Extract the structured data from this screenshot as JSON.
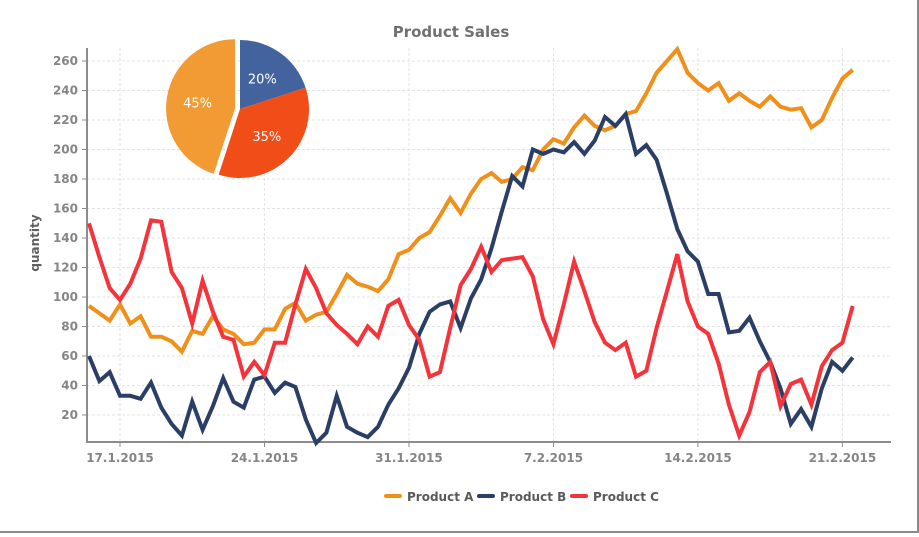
{
  "chart_data": {
    "type": "line",
    "title": "Product Sales",
    "xlabel": "",
    "ylabel": "quantity",
    "ylim": [
      0,
      268
    ],
    "yticks": [
      20,
      40,
      60,
      80,
      100,
      120,
      140,
      160,
      180,
      200,
      220,
      240,
      260
    ],
    "x_start_day": -1.5,
    "x_step_days": 0.5,
    "xlim_days": [
      -1.55,
      37.35
    ],
    "xticks": [
      {
        "label": "17.1.2015",
        "day": 0
      },
      {
        "label": "24.1.2015",
        "day": 7
      },
      {
        "label": "31.1.2015",
        "day": 14
      },
      {
        "label": "7.2.2015",
        "day": 21
      },
      {
        "label": "14.2.2015",
        "day": 28
      },
      {
        "label": "21.2.2015",
        "day": 35
      }
    ],
    "grid": true,
    "legend_position": "bottom-center",
    "series": [
      {
        "name": "Product A",
        "color": "#f0901a",
        "values": [
          94,
          89,
          84,
          95,
          82,
          87,
          73,
          73,
          70,
          63,
          77,
          75,
          87,
          78,
          75,
          68,
          69,
          78,
          78,
          92,
          96,
          84,
          88,
          90,
          102,
          115,
          109,
          107,
          104,
          112,
          129,
          132,
          140,
          144,
          155,
          167,
          157,
          170,
          180,
          184,
          178,
          180,
          188,
          186,
          200,
          207,
          204,
          215,
          223,
          216,
          213,
          216,
          224,
          226,
          238,
          252,
          260,
          268,
          252,
          245,
          240,
          245,
          233,
          238,
          233,
          229,
          236,
          229,
          227,
          228,
          215,
          220,
          235,
          248,
          254
        ]
      },
      {
        "name": "Product B",
        "color": "#2b3f66",
        "values": [
          60,
          43,
          49,
          33,
          33,
          31,
          42,
          25,
          14,
          6,
          29,
          10,
          26,
          45,
          29,
          25,
          44,
          46,
          35,
          42,
          39,
          17,
          1,
          8,
          33,
          12,
          8,
          5,
          12,
          27,
          38,
          52,
          75,
          90,
          95,
          97,
          79,
          99,
          112,
          133,
          158,
          182,
          175,
          200,
          197,
          200,
          198,
          205,
          197,
          206,
          222,
          216,
          224,
          197,
          203,
          193,
          170,
          146,
          131,
          124,
          102,
          102,
          76,
          77,
          86,
          70,
          56,
          38,
          14,
          24,
          12,
          38,
          56,
          50,
          59
        ]
      },
      {
        "name": "Product C",
        "color": "#f5333a",
        "values": [
          150,
          127,
          106,
          98,
          109,
          126,
          152,
          151,
          117,
          106,
          82,
          111,
          90,
          73,
          71,
          46,
          56,
          47,
          69,
          69,
          95,
          119,
          106,
          89,
          81,
          75,
          68,
          80,
          73,
          94,
          98,
          81,
          71,
          46,
          49,
          79,
          108,
          119,
          134,
          117,
          125,
          126,
          127,
          114,
          85,
          68,
          95,
          124,
          104,
          83,
          69,
          64,
          69,
          46,
          50,
          79,
          104,
          129,
          97,
          80,
          75,
          55,
          27,
          6,
          22,
          49,
          56,
          26,
          41,
          44,
          27,
          53,
          64,
          69,
          94
        ]
      }
    ]
  },
  "pie": {
    "slices": [
      {
        "name": "Product B",
        "percent": 20,
        "label": "20%",
        "color": "#43639f"
      },
      {
        "name": "Product C",
        "percent": 35,
        "label": "35%",
        "color": "#f04d19"
      },
      {
        "name": "Product A",
        "percent": 45,
        "label": "45%",
        "color": "#f29b35",
        "exploded": true
      }
    ]
  },
  "legend": [
    {
      "label": "Product A",
      "color": "#f0901a"
    },
    {
      "label": "Product B",
      "color": "#2b3f66"
    },
    {
      "label": "Product C",
      "color": "#f5333a"
    }
  ]
}
